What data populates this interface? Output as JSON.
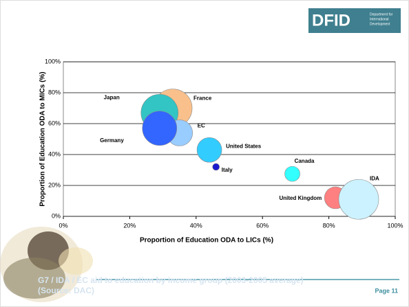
{
  "logo": {
    "name": "DFID",
    "sub": [
      "Department for",
      "International",
      "Development"
    ]
  },
  "chart_data": {
    "type": "bubble",
    "xlabel": "Proportion of Education ODA to LICs (%)",
    "ylabel": "Proportion of Education ODA to MICs (%)",
    "xlim": [
      0,
      100
    ],
    "ylim": [
      0,
      100
    ],
    "xticks": [
      {
        "value": 0,
        "label": "0%"
      },
      {
        "value": 20,
        "label": "20%"
      },
      {
        "value": 40,
        "label": "40%"
      },
      {
        "value": 60,
        "label": "60%"
      },
      {
        "value": 80,
        "label": "80%"
      },
      {
        "value": 100,
        "label": "100%"
      }
    ],
    "yticks": [
      {
        "value": 0,
        "label": "0%"
      },
      {
        "value": 20,
        "label": "20%"
      },
      {
        "value": 40,
        "label": "40%"
      },
      {
        "value": 60,
        "label": "60%"
      },
      {
        "value": 80,
        "label": "80%"
      },
      {
        "value": 100,
        "label": "100%"
      }
    ],
    "grid": true,
    "series": [
      {
        "name": "France",
        "color": "#f9c08c",
        "x": [
          33
        ],
        "values": [
          70
        ],
        "size": [
          28
        ]
      },
      {
        "name": "Japan",
        "color": "#33c4c4",
        "x": [
          29
        ],
        "values": [
          67
        ],
        "size": [
          27
        ]
      },
      {
        "name": "EC",
        "color": "#99ccff",
        "x": [
          35
        ],
        "values": [
          54
        ],
        "size": [
          19
        ]
      },
      {
        "name": "Germany",
        "color": "#3366ff",
        "x": [
          29
        ],
        "values": [
          57
        ],
        "size": [
          25
        ]
      },
      {
        "name": "United States",
        "color": "#33ccff",
        "x": [
          44
        ],
        "values": [
          43
        ],
        "size": [
          18
        ]
      },
      {
        "name": "Italy",
        "color": "#1a1acc",
        "x": [
          46
        ],
        "values": [
          32
        ],
        "size": [
          5
        ]
      },
      {
        "name": "Canada",
        "color": "#33ffff",
        "x": [
          69
        ],
        "values": [
          27.5
        ],
        "size": [
          11
        ]
      },
      {
        "name": "United Kingdom",
        "color": "#ff8080",
        "x": [
          82
        ],
        "values": [
          12
        ],
        "size": [
          16
        ]
      },
      {
        "name": "IDA",
        "color": "#ccf2ff",
        "x": [
          89
        ],
        "values": [
          11
        ],
        "size": [
          29
        ]
      }
    ]
  },
  "footer": {
    "title": "G7 / IDA / EC aid to education by income group (2003-2005 average)",
    "source": "(Source: DAC)",
    "page": "Page 11"
  }
}
